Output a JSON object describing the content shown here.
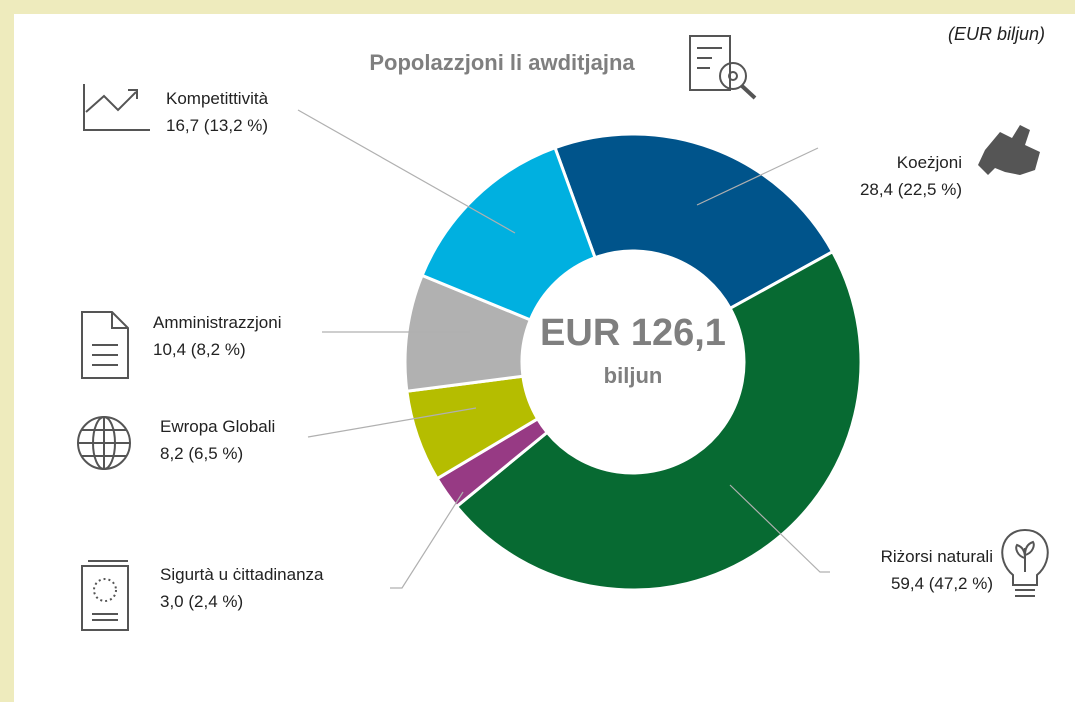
{
  "chart_data": {
    "type": "pie",
    "title": "Popolazzjoni li awditjajna",
    "subtitle": "(EUR biljun)",
    "center_label": "EUR 126,1",
    "center_sublabel": "biljun",
    "categories": [
      "Koeżjoni",
      "Riżorsi naturali",
      "Sigurtà u ċittadinanza",
      "Ewropa Globali",
      "Amministrazzjoni",
      "Kompetittività"
    ],
    "values": [
      28.4,
      59.4,
      3.0,
      8.2,
      10.4,
      16.7
    ],
    "value_labels": [
      "28,4 (22,5 %)",
      "59,4 (47,2 %)",
      "3,0 (2,4 %)",
      "8,2 (6,5 %)",
      "10,4 (8,2 %)",
      "16,7 (13,2 %)"
    ],
    "colors": [
      "#00548b",
      "#076a32",
      "#973a84",
      "#b5bd00",
      "#b1b1b1",
      "#00b0e0"
    ],
    "donut": true
  }
}
